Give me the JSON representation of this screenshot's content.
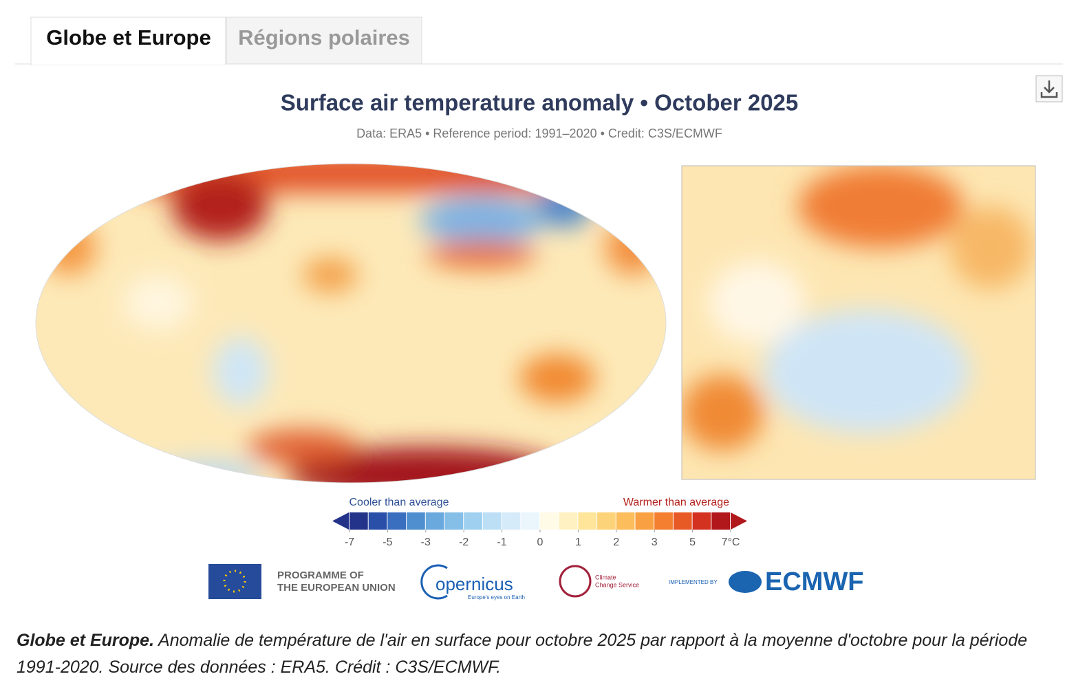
{
  "tabs": [
    "Globe et Europe",
    "Régions polaires"
  ],
  "chart_data": {
    "type": "colorbar",
    "title": "Surface air temperature anomaly • October 2025",
    "subtitle": "Data: ERA5 • Reference period: 1991–2020 • Credit: C3S/ECMWF",
    "cool_label": "Cooler than average",
    "warm_label": "Warmer than average",
    "bounds": [
      -7,
      -6,
      -5,
      -4,
      -3,
      -2.5,
      -2,
      -1.5,
      -1,
      -0.5,
      0,
      0.5,
      1,
      1.5,
      2,
      2.5,
      3,
      4,
      5,
      6,
      7
    ],
    "colors": [
      "#23338a",
      "#2a4fa8",
      "#3a6fc0",
      "#4f8fd0",
      "#6aa9de",
      "#85bfe8",
      "#a0d0ef",
      "#bcdff5",
      "#d6ebf9",
      "#eaf5fc",
      "#fffbe6",
      "#fff1c2",
      "#fee59a",
      "#fdd37a",
      "#fcbd5c",
      "#f9a043",
      "#f47f30",
      "#e85a25",
      "#d43221",
      "#b0181c"
    ],
    "xticks": [
      -7,
      -5,
      -3,
      -2,
      -1,
      0,
      1,
      2,
      3,
      5,
      {
        "value": 7,
        "label": "7°C"
      }
    ]
  },
  "logos": {
    "eu": [
      "PROGRAMME OF",
      "THE EUROPEAN UNION"
    ],
    "copernicus": "opernicus",
    "copernicus_tagline": "Europe's eyes on Earth",
    "c3s": [
      "Climate",
      "Change Service"
    ],
    "implemented": "IMPLEMENTED BY",
    "ecmwf": "ECMWF"
  },
  "caption": {
    "bold": "Globe et Europe.",
    "text": " Anomalie de température de l'air en surface pour octobre 2025 par rapport à la moyenne d'octobre pour la période 1991-2020. Source des données : ERA5. Crédit : C3S/ECMWF."
  }
}
